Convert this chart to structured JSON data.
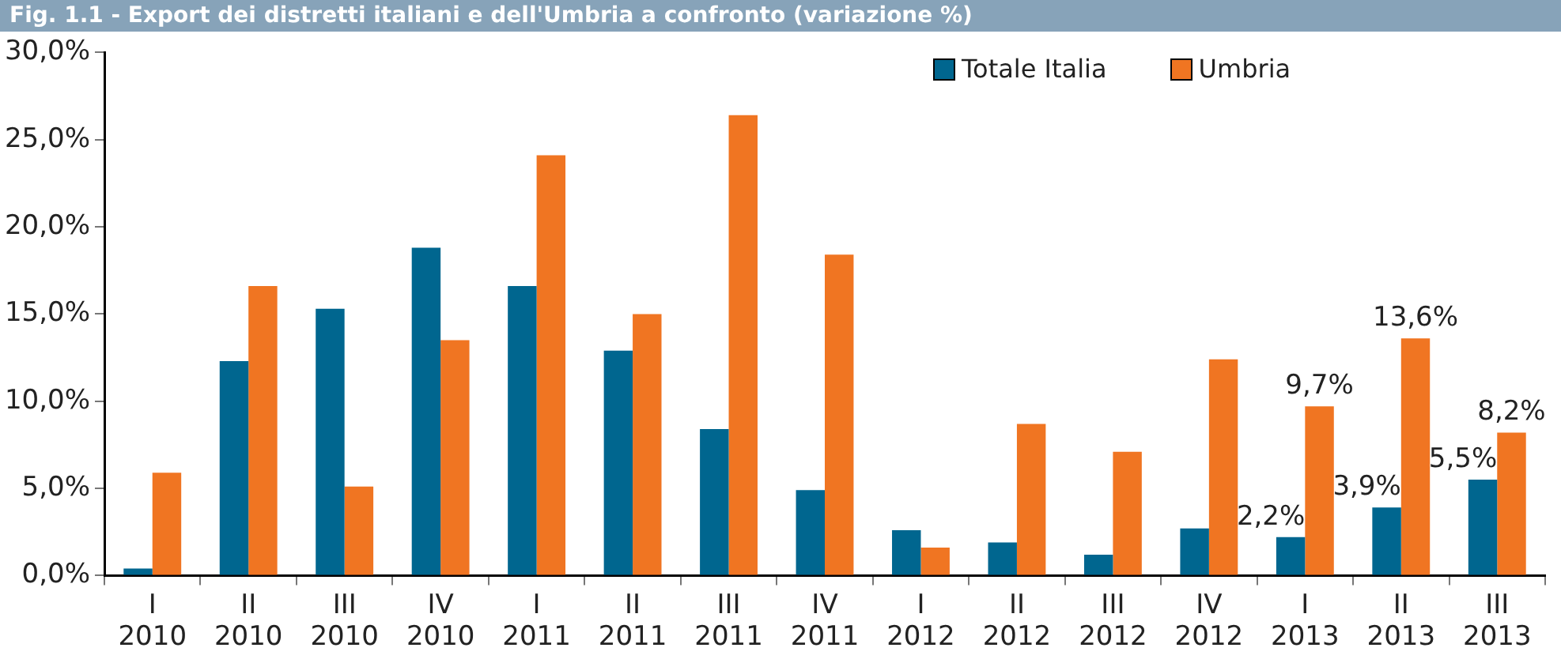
{
  "chart_data": {
    "type": "bar",
    "title": "Fig. 1.1 - Export dei distretti italiani e dell'Umbria a confronto (variazione %)",
    "categories": [
      "I 2010",
      "II 2010",
      "III 2010",
      "IV 2010",
      "I 2011",
      "II 2011",
      "III 2011",
      "IV 2011",
      "I 2012",
      "II 2012",
      "III 2012",
      "IV 2012",
      "I 2013",
      "II 2013",
      "III 2013"
    ],
    "series": [
      {
        "name": "Totale Italia",
        "color": "#00668f",
        "values": [
          0.4,
          12.3,
          15.3,
          18.8,
          16.6,
          12.9,
          8.4,
          4.9,
          2.6,
          1.9,
          1.2,
          2.7,
          2.2,
          3.9,
          5.5
        ],
        "value_labels": [
          null,
          null,
          null,
          null,
          null,
          null,
          null,
          null,
          null,
          null,
          null,
          null,
          "2,2%",
          "3,9%",
          "5,5%"
        ]
      },
      {
        "name": "Umbria",
        "color": "#f07522",
        "values": [
          5.9,
          16.6,
          5.1,
          13.5,
          24.1,
          15.0,
          26.4,
          18.4,
          1.6,
          8.7,
          7.1,
          12.4,
          9.7,
          13.6,
          8.2
        ],
        "value_labels": [
          null,
          null,
          null,
          null,
          null,
          null,
          null,
          null,
          null,
          null,
          null,
          null,
          "9,7%",
          "13,6%",
          "8,2%"
        ]
      }
    ],
    "ylim": [
      0,
      30
    ],
    "yticks": [
      {
        "value": 0,
        "label": "0,0%"
      },
      {
        "value": 5,
        "label": "5,0%"
      },
      {
        "value": 10,
        "label": "10,0%"
      },
      {
        "value": 15,
        "label": "15,0%"
      },
      {
        "value": 20,
        "label": "20,0%"
      },
      {
        "value": 25,
        "label": "25,0%"
      },
      {
        "value": 30,
        "label": "30,0%"
      }
    ],
    "grid": false,
    "legend": "top right"
  }
}
